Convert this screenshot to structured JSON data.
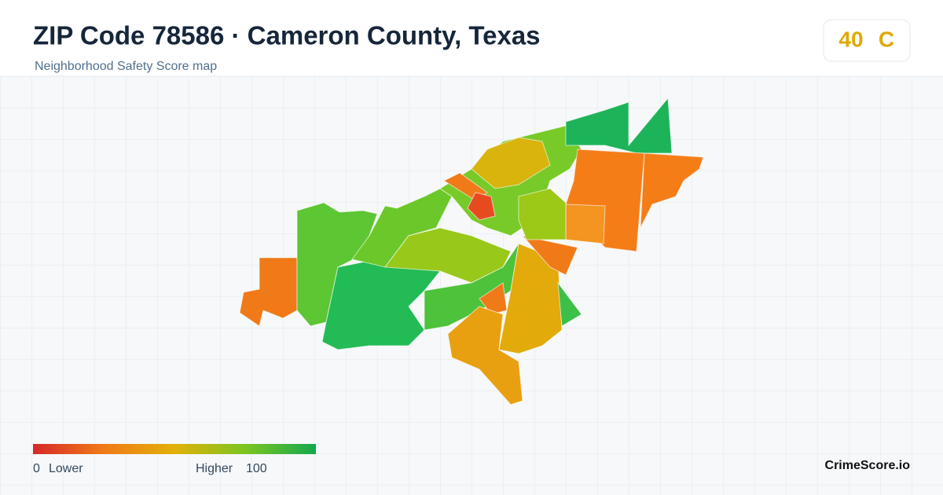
{
  "header": {
    "title": "ZIP Code 78586 · Cameron County, Texas",
    "subtitle": "Neighborhood Safety Score map"
  },
  "score": {
    "value": "40",
    "grade": "C"
  },
  "legend": {
    "min": "0",
    "min_label": "Lower",
    "max_label": "Higher",
    "max": "100"
  },
  "brand": "CrimeScore.io"
}
